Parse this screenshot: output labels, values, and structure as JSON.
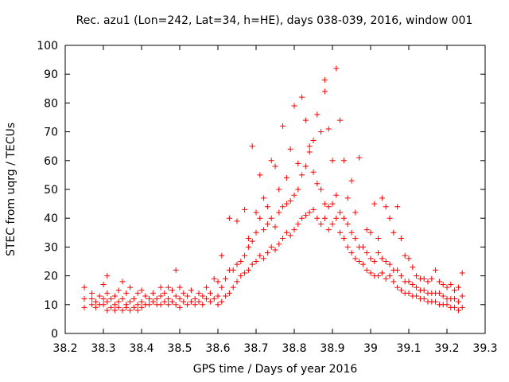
{
  "chart_data": {
    "type": "scatter",
    "title": "Rec. azu1 (Lon=242, Lat=34, h=HE), days 038-039, 2016, window 001",
    "xlabel": "GPS time / Days of year 2016",
    "ylabel": "STEC from uqrg / TECUs",
    "xlim": [
      38.2,
      39.3
    ],
    "ylim": [
      0,
      100
    ],
    "xticks": [
      "38.2",
      "38.3",
      "38.4",
      "38.5",
      "38.6",
      "38.7",
      "38.8",
      "38.9",
      "39",
      "39.1",
      "39.2",
      "39.3"
    ],
    "yticks": [
      "0",
      "10",
      "20",
      "30",
      "40",
      "50",
      "60",
      "70",
      "80",
      "90",
      "100"
    ],
    "marker": "plus",
    "color": "#ff0000",
    "grid": false,
    "legend": "none",
    "points": [
      [
        38.25,
        9
      ],
      [
        38.25,
        12
      ],
      [
        38.25,
        16
      ],
      [
        38.27,
        10
      ],
      [
        38.27,
        12
      ],
      [
        38.27,
        14
      ],
      [
        38.28,
        9
      ],
      [
        38.28,
        11
      ],
      [
        38.29,
        10
      ],
      [
        38.29,
        13
      ],
      [
        38.3,
        10
      ],
      [
        38.3,
        12
      ],
      [
        38.3,
        17
      ],
      [
        38.31,
        8
      ],
      [
        38.31,
        11
      ],
      [
        38.31,
        14
      ],
      [
        38.31,
        20
      ],
      [
        38.32,
        9
      ],
      [
        38.32,
        12
      ],
      [
        38.33,
        8
      ],
      [
        38.33,
        10
      ],
      [
        38.33,
        13
      ],
      [
        38.34,
        9
      ],
      [
        38.34,
        11
      ],
      [
        38.34,
        15
      ],
      [
        38.35,
        8
      ],
      [
        38.35,
        12
      ],
      [
        38.35,
        18
      ],
      [
        38.36,
        9
      ],
      [
        38.36,
        10
      ],
      [
        38.36,
        14
      ],
      [
        38.37,
        8
      ],
      [
        38.37,
        11
      ],
      [
        38.37,
        16
      ],
      [
        38.38,
        9
      ],
      [
        38.38,
        12
      ],
      [
        38.39,
        8
      ],
      [
        38.39,
        10
      ],
      [
        38.39,
        14
      ],
      [
        38.4,
        9
      ],
      [
        38.4,
        11
      ],
      [
        38.4,
        15
      ],
      [
        38.41,
        10
      ],
      [
        38.41,
        13
      ],
      [
        38.42,
        10
      ],
      [
        38.42,
        12
      ],
      [
        38.43,
        11
      ],
      [
        38.43,
        14
      ],
      [
        38.44,
        10
      ],
      [
        38.44,
        12
      ],
      [
        38.45,
        10
      ],
      [
        38.45,
        13
      ],
      [
        38.45,
        16
      ],
      [
        38.46,
        11
      ],
      [
        38.46,
        14
      ],
      [
        38.47,
        10
      ],
      [
        38.47,
        12
      ],
      [
        38.47,
        16
      ],
      [
        38.48,
        11
      ],
      [
        38.48,
        15
      ],
      [
        38.49,
        10
      ],
      [
        38.49,
        13
      ],
      [
        38.49,
        22
      ],
      [
        38.5,
        9
      ],
      [
        38.5,
        12
      ],
      [
        38.5,
        16
      ],
      [
        38.51,
        11
      ],
      [
        38.51,
        14
      ],
      [
        38.52,
        10
      ],
      [
        38.52,
        13
      ],
      [
        38.53,
        11
      ],
      [
        38.53,
        15
      ],
      [
        38.54,
        10
      ],
      [
        38.54,
        12
      ],
      [
        38.55,
        11
      ],
      [
        38.55,
        14
      ],
      [
        38.56,
        10
      ],
      [
        38.56,
        13
      ],
      [
        38.57,
        12
      ],
      [
        38.57,
        16
      ],
      [
        38.58,
        11
      ],
      [
        38.58,
        14
      ],
      [
        38.59,
        12
      ],
      [
        38.59,
        19
      ],
      [
        38.6,
        10
      ],
      [
        38.6,
        13
      ],
      [
        38.6,
        18
      ],
      [
        38.61,
        11
      ],
      [
        38.61,
        16
      ],
      [
        38.61,
        27
      ],
      [
        38.62,
        13
      ],
      [
        38.62,
        19
      ],
      [
        38.63,
        14
      ],
      [
        38.63,
        22
      ],
      [
        38.63,
        40
      ],
      [
        38.64,
        16
      ],
      [
        38.64,
        22
      ],
      [
        38.65,
        18
      ],
      [
        38.65,
        24
      ],
      [
        38.65,
        39
      ],
      [
        38.66,
        20
      ],
      [
        38.66,
        25
      ],
      [
        38.67,
        21
      ],
      [
        38.67,
        27
      ],
      [
        38.67,
        43
      ],
      [
        38.68,
        22
      ],
      [
        38.68,
        30
      ],
      [
        38.68,
        33
      ],
      [
        38.69,
        24
      ],
      [
        38.69,
        32
      ],
      [
        38.69,
        65
      ],
      [
        38.7,
        25
      ],
      [
        38.7,
        35
      ],
      [
        38.7,
        42
      ],
      [
        38.71,
        27
      ],
      [
        38.71,
        40
      ],
      [
        38.71,
        55
      ],
      [
        38.72,
        26
      ],
      [
        38.72,
        36
      ],
      [
        38.72,
        47
      ],
      [
        38.73,
        28
      ],
      [
        38.73,
        38
      ],
      [
        38.73,
        44
      ],
      [
        38.74,
        30
      ],
      [
        38.74,
        40
      ],
      [
        38.74,
        60
      ],
      [
        38.75,
        29
      ],
      [
        38.75,
        37
      ],
      [
        38.75,
        58
      ],
      [
        38.76,
        31
      ],
      [
        38.76,
        42
      ],
      [
        38.76,
        50
      ],
      [
        38.77,
        33
      ],
      [
        38.77,
        44
      ],
      [
        38.77,
        72
      ],
      [
        38.78,
        35
      ],
      [
        38.78,
        45
      ],
      [
        38.78,
        54
      ],
      [
        38.79,
        34
      ],
      [
        38.79,
        46
      ],
      [
        38.79,
        64
      ],
      [
        38.8,
        36
      ],
      [
        38.8,
        48
      ],
      [
        38.8,
        79
      ],
      [
        38.81,
        38
      ],
      [
        38.81,
        50
      ],
      [
        38.81,
        59
      ],
      [
        38.82,
        40
      ],
      [
        38.82,
        55
      ],
      [
        38.82,
        82
      ],
      [
        38.83,
        41
      ],
      [
        38.83,
        58
      ],
      [
        38.83,
        74
      ],
      [
        38.84,
        42
      ],
      [
        38.84,
        63
      ],
      [
        38.84,
        65
      ],
      [
        38.85,
        43
      ],
      [
        38.85,
        56
      ],
      [
        38.85,
        67
      ],
      [
        38.86,
        40
      ],
      [
        38.86,
        52
      ],
      [
        38.86,
        76
      ],
      [
        38.87,
        38
      ],
      [
        38.87,
        50
      ],
      [
        38.87,
        70
      ],
      [
        38.88,
        40
      ],
      [
        38.88,
        45
      ],
      [
        38.88,
        84
      ],
      [
        38.88,
        88
      ],
      [
        38.89,
        36
      ],
      [
        38.89,
        44
      ],
      [
        38.89,
        71
      ],
      [
        38.9,
        38
      ],
      [
        38.9,
        45
      ],
      [
        38.9,
        60
      ],
      [
        38.91,
        40
      ],
      [
        38.91,
        48
      ],
      [
        38.91,
        92
      ],
      [
        38.92,
        35
      ],
      [
        38.92,
        42
      ],
      [
        38.92,
        74
      ],
      [
        38.93,
        33
      ],
      [
        38.93,
        40
      ],
      [
        38.93,
        60
      ],
      [
        38.94,
        30
      ],
      [
        38.94,
        38
      ],
      [
        38.94,
        47
      ],
      [
        38.95,
        28
      ],
      [
        38.95,
        35
      ],
      [
        38.95,
        53
      ],
      [
        38.96,
        26
      ],
      [
        38.96,
        33
      ],
      [
        38.96,
        42
      ],
      [
        38.97,
        25
      ],
      [
        38.97,
        30
      ],
      [
        38.97,
        61
      ],
      [
        38.98,
        24
      ],
      [
        38.98,
        30
      ],
      [
        38.99,
        22
      ],
      [
        38.99,
        28
      ],
      [
        38.99,
        36
      ],
      [
        39.0,
        21
      ],
      [
        39.0,
        26
      ],
      [
        39.0,
        35
      ],
      [
        39.01,
        20
      ],
      [
        39.01,
        25
      ],
      [
        39.01,
        45
      ],
      [
        39.02,
        20
      ],
      [
        39.02,
        28
      ],
      [
        39.02,
        33
      ],
      [
        39.03,
        21
      ],
      [
        39.03,
        26
      ],
      [
        39.03,
        47
      ],
      [
        39.04,
        19
      ],
      [
        39.04,
        25
      ],
      [
        39.04,
        44
      ],
      [
        39.05,
        20
      ],
      [
        39.05,
        24
      ],
      [
        39.05,
        40
      ],
      [
        39.06,
        18
      ],
      [
        39.06,
        22
      ],
      [
        39.06,
        35
      ],
      [
        39.07,
        16
      ],
      [
        39.07,
        22
      ],
      [
        39.07,
        44
      ],
      [
        39.08,
        15
      ],
      [
        39.08,
        20
      ],
      [
        39.08,
        33
      ],
      [
        39.09,
        14
      ],
      [
        39.09,
        18
      ],
      [
        39.09,
        27
      ],
      [
        39.1,
        14
      ],
      [
        39.1,
        18
      ],
      [
        39.1,
        26
      ],
      [
        39.11,
        13
      ],
      [
        39.11,
        17
      ],
      [
        39.11,
        23
      ],
      [
        39.12,
        13
      ],
      [
        39.12,
        16
      ],
      [
        39.12,
        20
      ],
      [
        39.13,
        12
      ],
      [
        39.13,
        15
      ],
      [
        39.13,
        19
      ],
      [
        39.14,
        12
      ],
      [
        39.14,
        15
      ],
      [
        39.14,
        19
      ],
      [
        39.15,
        11
      ],
      [
        39.15,
        14
      ],
      [
        39.15,
        18
      ],
      [
        39.16,
        11
      ],
      [
        39.16,
        14
      ],
      [
        39.16,
        19
      ],
      [
        39.17,
        11
      ],
      [
        39.17,
        14
      ],
      [
        39.17,
        22
      ],
      [
        39.18,
        10
      ],
      [
        39.18,
        14
      ],
      [
        39.18,
        18
      ],
      [
        39.19,
        10
      ],
      [
        39.19,
        13
      ],
      [
        39.19,
        17
      ],
      [
        39.2,
        10
      ],
      [
        39.2,
        12
      ],
      [
        39.2,
        16
      ],
      [
        39.21,
        9
      ],
      [
        39.21,
        12
      ],
      [
        39.21,
        17
      ],
      [
        39.22,
        9
      ],
      [
        39.22,
        12
      ],
      [
        39.22,
        15
      ],
      [
        39.23,
        8
      ],
      [
        39.23,
        11
      ],
      [
        39.23,
        16
      ],
      [
        39.24,
        9
      ],
      [
        39.24,
        13
      ],
      [
        39.24,
        21
      ]
    ]
  }
}
